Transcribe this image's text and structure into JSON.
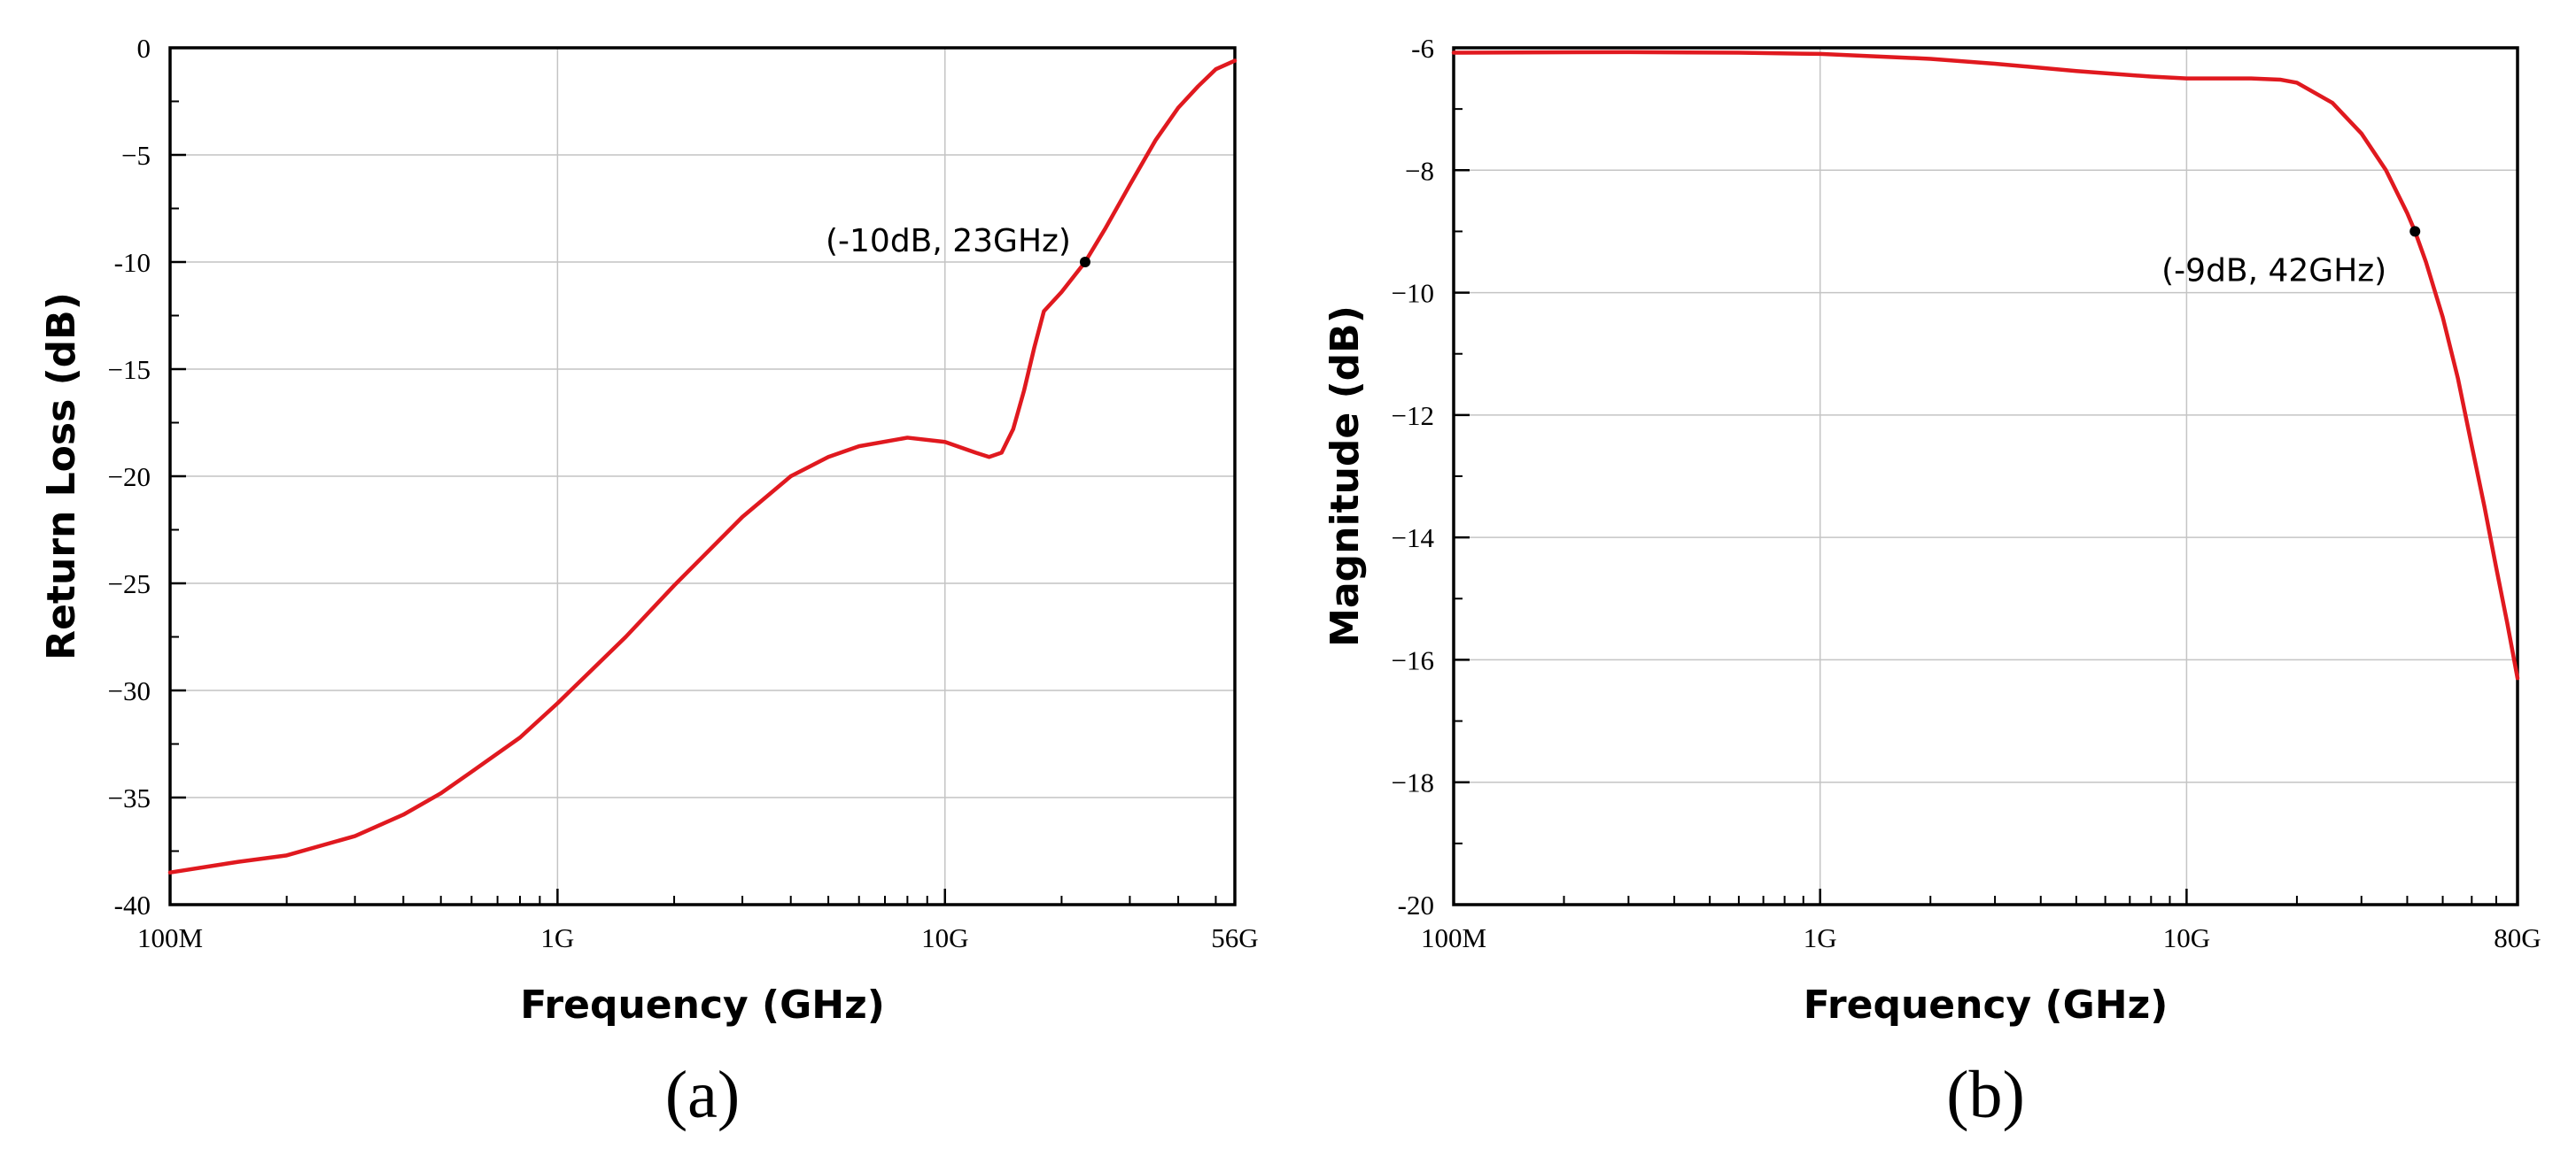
{
  "chart_data": [
    {
      "type": "line",
      "panel_label": "(a)",
      "xlabel": "Frequency (GHz)",
      "ylabel": "Return Loss (dB)",
      "x_scale": "log",
      "xlim": [
        0.1,
        56
      ],
      "ylim": [
        -40,
        0
      ],
      "x_ticks": [
        {
          "value": 0.1,
          "label": "100M"
        },
        {
          "value": 1,
          "label": "1G"
        },
        {
          "value": 10,
          "label": "10G"
        },
        {
          "value": 56,
          "label": "56G"
        }
      ],
      "y_ticks": [
        {
          "value": 0,
          "label": "0"
        },
        {
          "value": -5,
          "label": "−5"
        },
        {
          "value": -10,
          "label": "-10"
        },
        {
          "value": -15,
          "label": "−15"
        },
        {
          "value": -20,
          "label": "−20"
        },
        {
          "value": -25,
          "label": "−25"
        },
        {
          "value": -30,
          "label": "−30"
        },
        {
          "value": -35,
          "label": "−35"
        },
        {
          "value": -40,
          "label": "-40"
        }
      ],
      "grid": true,
      "series": [
        {
          "color": "#e0191f",
          "x": [
            0.1,
            0.15,
            0.2,
            0.3,
            0.4,
            0.5,
            0.6,
            0.8,
            1.0,
            1.5,
            2,
            3,
            4,
            5,
            6,
            8,
            10,
            12,
            13,
            14,
            15,
            16,
            17,
            18,
            20,
            23,
            26,
            30,
            35,
            40,
            45,
            50,
            56
          ],
          "y": [
            -38.5,
            -38.0,
            -37.7,
            -36.8,
            -35.8,
            -34.8,
            -33.8,
            -32.2,
            -30.6,
            -27.5,
            -25.1,
            -21.9,
            -20.0,
            -19.1,
            -18.6,
            -18.2,
            -18.4,
            -18.9,
            -19.1,
            -18.9,
            -17.8,
            -16.0,
            -14.0,
            -12.3,
            -11.4,
            -10.0,
            -8.4,
            -6.4,
            -4.3,
            -2.8,
            -1.8,
            -1.0,
            -0.6
          ]
        }
      ],
      "annotations": [
        {
          "x": 23,
          "y": -10,
          "text": "(-10dB, 23GHz)",
          "color": "#000000"
        }
      ]
    },
    {
      "type": "line",
      "panel_label": "(b)",
      "xlabel": "Frequency (GHz)",
      "ylabel": "Magnitude (dB)",
      "x_scale": "log",
      "xlim": [
        0.1,
        80
      ],
      "ylim": [
        -20,
        -6
      ],
      "x_ticks": [
        {
          "value": 0.1,
          "label": "100M"
        },
        {
          "value": 1,
          "label": "1G"
        },
        {
          "value": 10,
          "label": "10G"
        },
        {
          "value": 80,
          "label": "80G"
        }
      ],
      "y_ticks": [
        {
          "value": -6,
          "label": "-6"
        },
        {
          "value": -8,
          "label": "−8"
        },
        {
          "value": -10,
          "label": "−10"
        },
        {
          "value": -12,
          "label": "−12"
        },
        {
          "value": -14,
          "label": "−14"
        },
        {
          "value": -16,
          "label": "−16"
        },
        {
          "value": -18,
          "label": "−18"
        },
        {
          "value": -20,
          "label": "-20"
        }
      ],
      "grid": true,
      "series": [
        {
          "color": "#e0191f",
          "x": [
            0.1,
            0.3,
            0.6,
            1.0,
            2,
            3,
            5,
            8,
            10,
            12,
            15,
            18,
            20,
            25,
            30,
            35,
            40,
            42,
            45,
            50,
            55,
            60,
            65,
            70,
            75,
            80
          ],
          "y": [
            -6.08,
            -6.07,
            -6.08,
            -6.1,
            -6.18,
            -6.26,
            -6.38,
            -6.47,
            -6.5,
            -6.5,
            -6.5,
            -6.52,
            -6.57,
            -6.9,
            -7.4,
            -8.0,
            -8.7,
            -9.0,
            -9.5,
            -10.4,
            -11.4,
            -12.5,
            -13.5,
            -14.5,
            -15.4,
            -16.3
          ]
        }
      ],
      "annotations": [
        {
          "x": 42,
          "y": -9,
          "text": "(-9dB, 42GHz)",
          "color": "#000000"
        }
      ]
    }
  ]
}
